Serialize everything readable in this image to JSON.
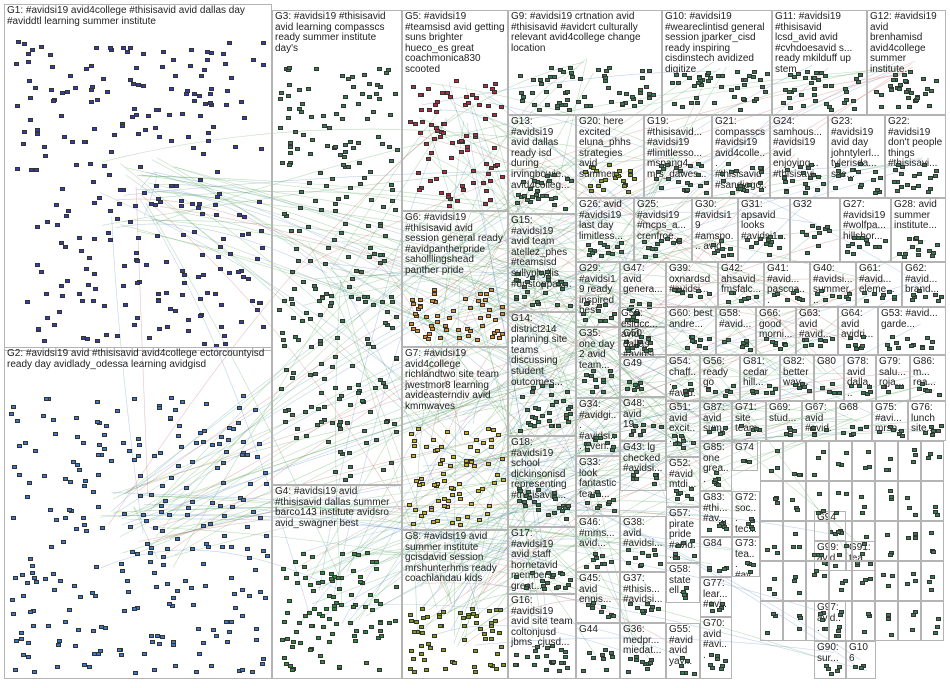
{
  "graph": {
    "groups": [
      {
        "id": "G1",
        "label": "G1: #avidsi19 avid4college #thisisavid avid dallas day #aviddtl learning summer institute",
        "color": "#3340a8"
      },
      {
        "id": "G2",
        "label": "G2: #avidsi19 avid #thisisavid avid4college ectorcountyisd ready day avidlady_odessa learning avidgisd",
        "color": "#3a78c8"
      },
      {
        "id": "G3",
        "label": "G3: #avidsi19 #thisisavid avid learning compasscs ready summer institute day's",
        "color": "#3a7a50"
      },
      {
        "id": "G4",
        "label": "G4: #avidsi19 avid #thisisavid dallas summer barco143 institute avidsro avid_swagner best",
        "color": "#2e8a3a"
      },
      {
        "id": "G5",
        "label": "G5: #avidsi19 #teamsisd avid getting suns brighter hueco_es great coachmonica830 scooted",
        "color": "#b03040"
      },
      {
        "id": "G6",
        "label": "G6: #avidsi19 #thisisavid avid session general ready #avidpantherpride saholllingshead panther pride",
        "color": "#d88a30"
      },
      {
        "id": "G7",
        "label": "G7: #avidsi19 avid4college richlandtwo site team jwestmor8 learning avideasterndiv avid kmmwaves",
        "color": "#c8b020"
      },
      {
        "id": "G8",
        "label": "G8: #avidsi19 avid summer institute gcisdavid session mrshunterhms ready coachlandau kids",
        "color": "#7a9a20"
      },
      {
        "id": "G9",
        "label": "G9: #avidsi19 crtnation avid #thisisavid #avidcrt culturally relevant avid4college change location",
        "color": "#3a7a50"
      },
      {
        "id": "G10",
        "label": "G10: #avidsi19 #weareclintisd general session jparker_cisd ready inspiring cisdinstech avidized digitize",
        "color": "#3a7a50"
      },
      {
        "id": "G11",
        "label": "G11: #avidsi19 #thisisavid lcsd_avid avid #cvhdoesavid s... ready mkilduff up stem",
        "color": "#3a7a50"
      },
      {
        "id": "G12",
        "label": "G12: #avidsi19 avid brenhamisd avid4college summer institute...",
        "color": "#3a7a50"
      },
      {
        "id": "G13",
        "label": "G13: #avidsi19 avid dallas ready isd during irvingbowie... avid4colleg...",
        "color": "#3a7a50"
      },
      {
        "id": "G20",
        "label": "G20: here excited eluna_phhs strategies avid summer...",
        "color": "#7a9a20"
      },
      {
        "id": "G19",
        "label": "G19: #thisisavid... #avidsi19 #limitlesso... mspang4 mrs_dawes...",
        "color": "#3a7a50"
      },
      {
        "id": "G21",
        "label": "G21: compasscs #avidsi19 avid4colle... #thisisavid #sandiego...",
        "color": "#3a7a50"
      },
      {
        "id": "G24",
        "label": "G24: samhous... #avidsi19 avid enjoying... #thisisavi...",
        "color": "#3a7a50"
      },
      {
        "id": "G23",
        "label": "G23: #avidsi19 avid day johntylerl... tylerisda... site...",
        "color": "#3a7a50"
      },
      {
        "id": "G22",
        "label": "G22: #avidsi19 don't people things #thisisavi...",
        "color": "#3a7a50"
      },
      {
        "id": "G15",
        "label": "G15: #avidsi19 avid team atellez_phes #teamsisd sullyphyllis #unstoppab...",
        "color": "#3a7a50"
      },
      {
        "id": "G26",
        "label": "G26: avid #avidsi19 last day limitless...",
        "color": "#3a7a50"
      },
      {
        "id": "G25",
        "label": "G25: #avidsi19 #mcps_a... crenfroe...",
        "color": "#3a7a50"
      },
      {
        "id": "G30",
        "label": "G30: #avidsi19 #amspo... avid...",
        "color": "#3a7a50"
      },
      {
        "id": "G31",
        "label": "G31: apsavid looks #avidsi1...",
        "color": "#3a7a50"
      },
      {
        "id": "G32",
        "label": "G32",
        "color": "#3a7a50"
      },
      {
        "id": "G27",
        "label": "G27: #avidsi19 #wolfpa... hillsbor...",
        "color": "#3a7a50"
      },
      {
        "id": "G28",
        "label": "G28: avid summer institute...",
        "color": "#3a7a50"
      },
      {
        "id": "G14",
        "label": "G14: district214 planning site teams discussing student outcomes...",
        "color": "#3a7a50"
      },
      {
        "id": "G29",
        "label": "G29: #avidsi19 ready inspired best",
        "color": "#3a7a50"
      },
      {
        "id": "G47",
        "label": "G47: avid genera...",
        "color": "#3a7a50"
      },
      {
        "id": "G39",
        "label": "G39: oxnardsd #avidsi...",
        "color": "#3a7a50"
      },
      {
        "id": "G42",
        "label": "G42: ahsavid fmsfalc...",
        "color": "#3a7a50"
      },
      {
        "id": "G41",
        "label": "G41: #avid... pascoa...",
        "color": "#3a7a50"
      },
      {
        "id": "G40",
        "label": "G40: #avidsi... summer...",
        "color": "#3a7a50"
      },
      {
        "id": "G61",
        "label": "G61: #avid... eleme...",
        "color": "#3a7a50"
      },
      {
        "id": "G62",
        "label": "G62: #avid... brand...",
        "color": "#3a7a50"
      },
      {
        "id": "G59",
        "label": "G59: eslgcc... avid",
        "color": "#3a7a50"
      },
      {
        "id": "G50",
        "label": "G50: dallas #avidsi...",
        "color": "#3a7a50"
      },
      {
        "id": "G60",
        "label": "G60: best andre...",
        "color": "#3a7a50"
      },
      {
        "id": "G58a",
        "label": "G58: #avid...",
        "color": "#3a7a50"
      },
      {
        "id": "G66",
        "label": "G66: good morni...",
        "color": "#3a7a50"
      },
      {
        "id": "G63",
        "label": "G63: avid #avid...",
        "color": "#3a7a50"
      },
      {
        "id": "G64",
        "label": "G64: avid avidri...",
        "color": "#3a7a50"
      },
      {
        "id": "G53",
        "label": "G53: #avid... garde...",
        "color": "#3a7a50"
      },
      {
        "id": "G18",
        "label": "G18: #avidsi19 school dickinsonisd representing #thisisavid...",
        "color": "#3a7a50"
      },
      {
        "id": "G35",
        "label": "G35: one day 2 avid team...",
        "color": "#3a7a50"
      },
      {
        "id": "G49",
        "label": "G49",
        "color": "#3a7a50"
      },
      {
        "id": "G54",
        "label": "G54: chaff... #avid...",
        "color": "#3a7a50"
      },
      {
        "id": "G56",
        "label": "G56: ready go",
        "color": "#3a7a50"
      },
      {
        "id": "G81",
        "label": "G81: cedar hill...",
        "color": "#3a7a50"
      },
      {
        "id": "G82",
        "label": "G82: better way...",
        "color": "#3a7a50"
      },
      {
        "id": "G80",
        "label": "G80",
        "color": "#3a7a50"
      },
      {
        "id": "G78",
        "label": "G78: avid dalla...",
        "color": "#3a7a50"
      },
      {
        "id": "G79",
        "label": "G79: salu... roja...",
        "color": "#3a7a50"
      },
      {
        "id": "G86",
        "label": "G86: m... rea...",
        "color": "#3a7a50"
      },
      {
        "id": "G34",
        "label": "G34: #avidgi... #avidsi... even...",
        "color": "#3a7a50"
      },
      {
        "id": "G48",
        "label": "G48: avid 19...",
        "color": "#3a7a50"
      },
      {
        "id": "G51",
        "label": "G51: avid excit... 19...",
        "color": "#3a7a50"
      },
      {
        "id": "G87",
        "label": "G87: avid sum...",
        "color": "#3a7a50"
      },
      {
        "id": "G71",
        "label": "G71: site team...",
        "color": "#3a7a50"
      },
      {
        "id": "G69",
        "label": "G69: stud...",
        "color": "#3a7a50"
      },
      {
        "id": "G67",
        "label": "G67: avid #avid...",
        "color": "#3a7a50"
      },
      {
        "id": "G68",
        "label": "G68",
        "color": "#3a7a50"
      },
      {
        "id": "G75",
        "label": "G75: #avi... mrsn...",
        "color": "#3a7a50"
      },
      {
        "id": "G76",
        "label": "G76: lunch site...",
        "color": "#3a7a50"
      },
      {
        "id": "G33",
        "label": "G33: look fantastic team...",
        "color": "#3a7a50"
      },
      {
        "id": "G43",
        "label": "G43: lg checked #avidsi...",
        "color": "#3a7a50"
      },
      {
        "id": "G52",
        "label": "G52: #avid mtdi...",
        "color": "#3a7a50"
      },
      {
        "id": "G85",
        "label": "G85: one grea...",
        "color": "#3a7a50"
      },
      {
        "id": "G74",
        "label": "G74",
        "color": "#3a7a50"
      },
      {
        "id": "G17",
        "label": "G17: #avidsi19 avid staff hornetavid members great...",
        "color": "#3a7a50"
      },
      {
        "id": "G83",
        "label": "G83: #thi... #av...",
        "color": "#3a7a50"
      },
      {
        "id": "G72",
        "label": "G72: soc... tec...",
        "color": "#3a7a50"
      },
      {
        "id": "G46",
        "label": "G46: #mms... avid...",
        "color": "#3a7a50"
      },
      {
        "id": "G38",
        "label": "G38: avid #avidsi...",
        "color": "#3a7a50"
      },
      {
        "id": "G57",
        "label": "G57: pirate pride #avid...",
        "color": "#3a7a50"
      },
      {
        "id": "G84",
        "label": "G84",
        "color": "#3a7a50"
      },
      {
        "id": "G73",
        "label": "G73: tea... #av...",
        "color": "#3a7a50"
      },
      {
        "id": "G94",
        "label": "G94",
        "color": "#3a7a50"
      },
      {
        "id": "G99",
        "label": "G99: avid...",
        "color": "#3a7a50"
      },
      {
        "id": "G91",
        "label": "G91: tea...",
        "color": "#3a7a50"
      },
      {
        "id": "G16",
        "label": "G16: #avidsi19 avid site team coltonjusd jbms_cjusd...",
        "color": "#3a7a50"
      },
      {
        "id": "G45",
        "label": "G45: avid ennis...",
        "color": "#3a7a50"
      },
      {
        "id": "G37",
        "label": "G37: #thisis... #avidsi...",
        "color": "#3a7a50"
      },
      {
        "id": "G58",
        "label": "G58: state ell...",
        "color": "#3a7a50"
      },
      {
        "id": "G77",
        "label": "G77: lear... #avi...",
        "color": "#3a7a50"
      },
      {
        "id": "G44",
        "label": "G44",
        "color": "#3a7a50"
      },
      {
        "id": "G36",
        "label": "G36: medpr... miedat...",
        "color": "#3a7a50"
      },
      {
        "id": "G55",
        "label": "G55: #avid avid yay...",
        "color": "#3a7a50"
      },
      {
        "id": "G70",
        "label": "G70: avid #avi...",
        "color": "#3a7a50"
      },
      {
        "id": "G97",
        "label": "G97: avid...",
        "color": "#3a7a50"
      },
      {
        "id": "G90",
        "label": "G90: sur...",
        "color": "#3a7a50"
      },
      {
        "id": "G106",
        "label": "G106",
        "color": "#3a7a50"
      }
    ]
  }
}
